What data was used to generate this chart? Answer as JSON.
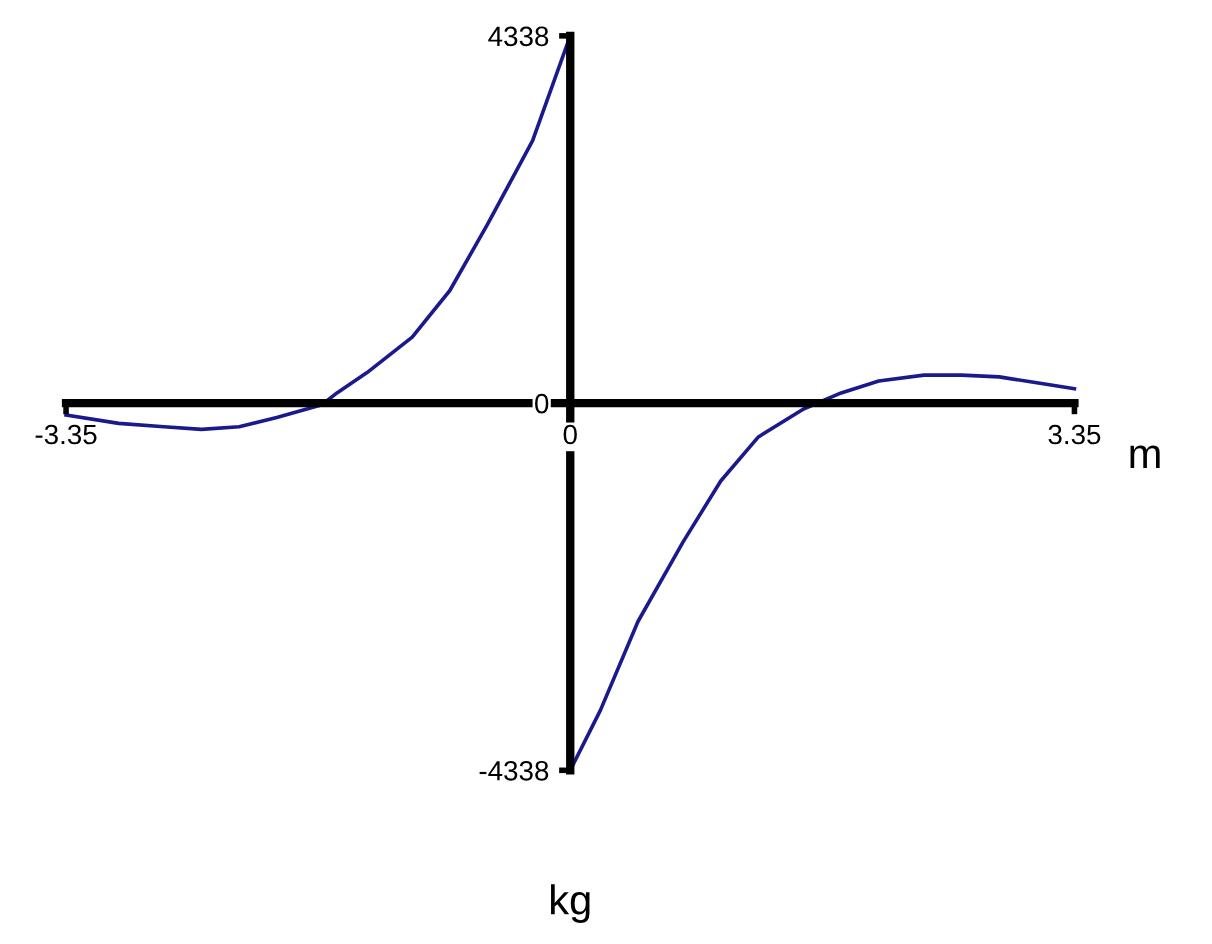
{
  "chart_data": {
    "type": "line",
    "xlabel": "kg",
    "ylabel": "m",
    "xlim": [
      -3.35,
      3.35
    ],
    "ylim": [
      -4338,
      4338
    ],
    "xticks": [
      -3.35,
      0,
      3.35
    ],
    "yticks": [
      -4338,
      0,
      4338
    ],
    "grid": false,
    "legend": false,
    "marker": "none",
    "line_style": "solid",
    "series": [
      {
        "color": "#1a1a8c",
        "x": [
          -3.35,
          -3.0,
          -2.7,
          -2.45,
          -2.2,
          -1.95,
          -1.65,
          -1.55,
          -1.35,
          -1.05,
          -0.8,
          -0.55,
          -0.25,
          0
        ],
        "values": [
          -140,
          -240,
          -280,
          -310,
          -280,
          -170,
          -20,
          120,
          360,
          780,
          1330,
          2110,
          3100,
          4338
        ]
      },
      {
        "color": "#1a1a8c",
        "x": [
          0,
          0.2,
          0.45,
          0.75,
          1.0,
          1.25,
          1.55,
          1.8,
          2.05,
          2.35,
          2.6,
          2.85,
          3.1,
          3.35
        ],
        "values": [
          -4338,
          -3630,
          -2580,
          -1640,
          -920,
          -400,
          -70,
          120,
          260,
          330,
          330,
          310,
          240,
          170
        ]
      }
    ]
  }
}
